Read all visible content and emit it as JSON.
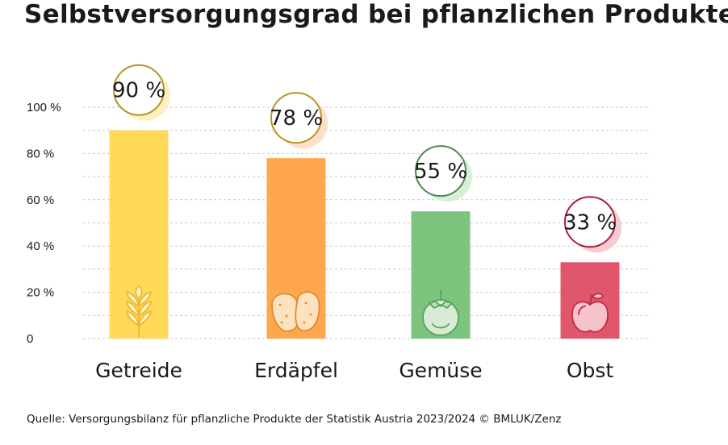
{
  "chart_data": {
    "type": "bar",
    "title": "Selbstversorgungsgrad bei pflanzlichen Produkten",
    "categories": [
      "Getreide",
      "Erdäpfel",
      "Gemüse",
      "Obst"
    ],
    "values": [
      90,
      78,
      55,
      33
    ],
    "data_labels": [
      "90 %",
      "78 %",
      "55 %",
      "33 %"
    ],
    "ylim": [
      0,
      100
    ],
    "yticks": [
      0,
      20,
      40,
      60,
      80,
      100
    ],
    "ytick_labels": [
      "0",
      "20 %",
      "40 %",
      "60 %",
      "80 %",
      "100 %"
    ],
    "xlabel": "",
    "ylabel": "",
    "grid": true,
    "colors": [
      "#ffd957",
      "#ffa74d",
      "#7dc47f",
      "#e0566b"
    ],
    "ring_colors": [
      "#b89422",
      "#b89422",
      "#4a8a4f",
      "#a8203a"
    ],
    "shadow_colors": [
      "#fdefc4",
      "#fde0c8",
      "#dbefd8",
      "#f6cbd0"
    ],
    "icon_colors": [
      "#eaba32",
      "#e0892e",
      "#5ba45e",
      "#bf2d45"
    ],
    "icons": [
      "wheat-icon",
      "potato-icon",
      "tomato-icon",
      "apple-icon"
    ]
  },
  "source": "Quelle: Versorgungsbilanz für pflanzliche Produkte der Statistik Austria 2023/2024  © BMLUK/Zenz"
}
